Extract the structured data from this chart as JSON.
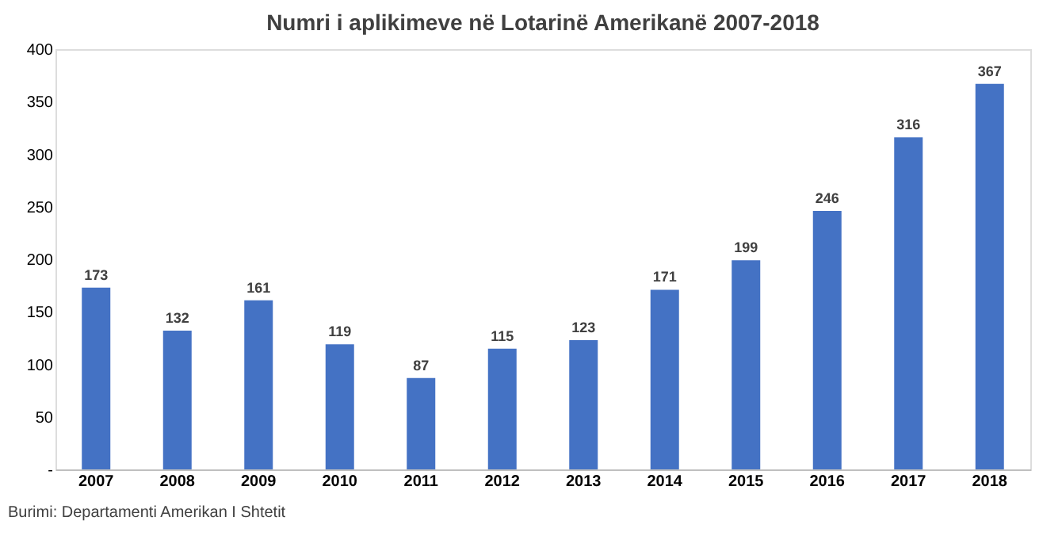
{
  "chart_data": {
    "type": "bar",
    "title": "Numri i aplikimeve në Lotarinë Amerikanë 2007-2018",
    "categories": [
      "2007",
      "2008",
      "2009",
      "2010",
      "2011",
      "2012",
      "2013",
      "2014",
      "2015",
      "2016",
      "2017",
      "2018"
    ],
    "values": [
      173,
      132,
      161,
      119,
      87,
      115,
      123,
      171,
      199,
      246,
      316,
      367
    ],
    "color": "#4472c4",
    "ylim": [
      0,
      400
    ],
    "yticks": [
      {
        "value": 0,
        "label": "-"
      },
      50,
      100,
      150,
      200,
      250,
      300,
      350,
      400
    ],
    "data_labels": true,
    "grid": false,
    "annotations": [
      "Burimi: Departamenti Amerikan I Shtetit"
    ]
  }
}
